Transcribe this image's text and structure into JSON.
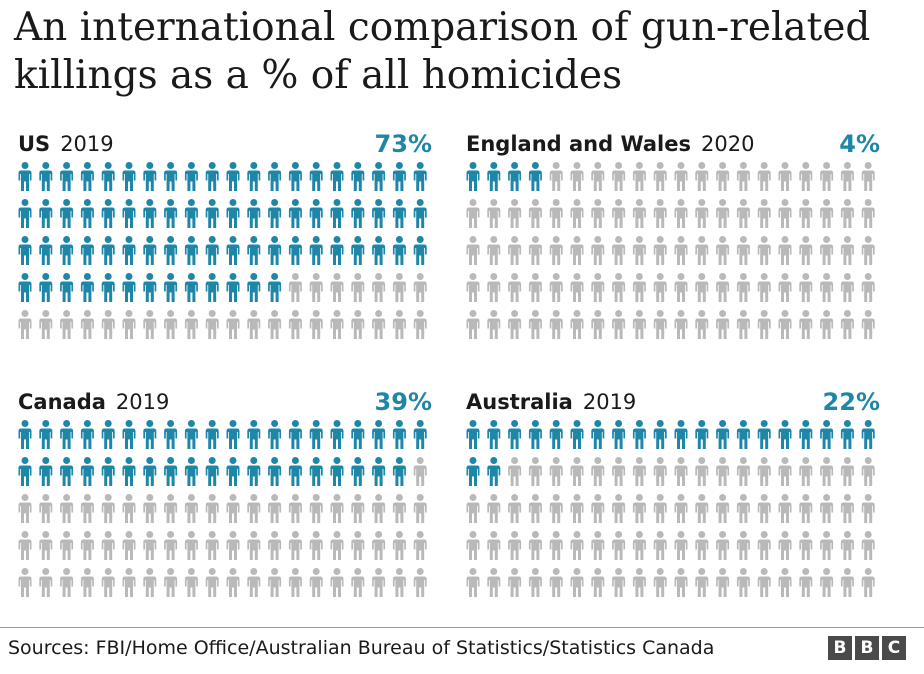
{
  "title": "An international comparison of gun-related killings as a % of all homicides",
  "source": "Sources: FBI/Home Office/Australian Bureau of Statistics/Statistics Canada",
  "brand": [
    "B",
    "B",
    "C"
  ],
  "colors": {
    "highlight": "#1e87a8",
    "base": "#b9b9b9",
    "percent_text": "#1e87a8"
  },
  "chart_data": [
    {
      "type": "pictogram",
      "country": "US",
      "year": "2019",
      "percent_label": "73%",
      "value": 73,
      "total_icons": 100,
      "rows": 5,
      "cols": 20
    },
    {
      "type": "pictogram",
      "country": "England and Wales",
      "year": "2020",
      "percent_label": "4%",
      "value": 4,
      "total_icons": 100,
      "rows": 5,
      "cols": 20
    },
    {
      "type": "pictogram",
      "country": "Canada",
      "year": "2019",
      "percent_label": "39%",
      "value": 39,
      "total_icons": 100,
      "rows": 5,
      "cols": 20
    },
    {
      "type": "pictogram",
      "country": "Australia",
      "year": "2019",
      "percent_label": "22%",
      "value": 22,
      "total_icons": 100,
      "rows": 5,
      "cols": 20
    }
  ]
}
